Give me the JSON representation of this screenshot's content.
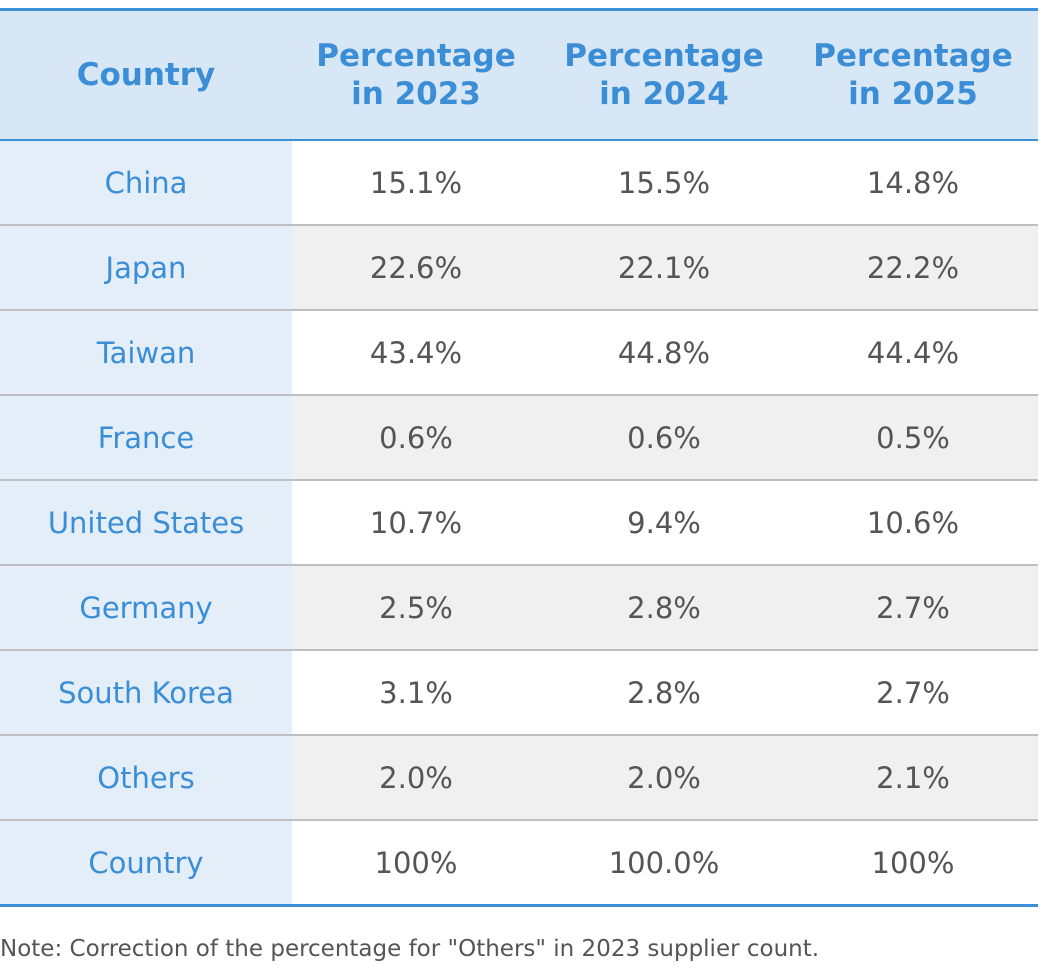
{
  "chart_data": {
    "type": "table",
    "columns": [
      "Country",
      "Percentage in 2023",
      "Percentage in 2024",
      "Percentage in 2025"
    ],
    "header_lines": [
      [
        "Country"
      ],
      [
        "Percentage",
        "in 2023"
      ],
      [
        "Percentage",
        "in 2024"
      ],
      [
        "Percentage",
        "in 2025"
      ]
    ],
    "rows": [
      [
        "China",
        "15.1%",
        "15.5%",
        "14.8%"
      ],
      [
        "Japan",
        "22.6%",
        "22.1%",
        "22.2%"
      ],
      [
        "Taiwan",
        "43.4%",
        "44.8%",
        "44.4%"
      ],
      [
        "France",
        "0.6%",
        "0.6%",
        "0.5%"
      ],
      [
        "United States",
        "10.7%",
        "9.4%",
        "10.6%"
      ],
      [
        "Germany",
        "2.5%",
        "2.8%",
        "2.7%"
      ],
      [
        "South Korea",
        "3.1%",
        "2.8%",
        "2.7%"
      ],
      [
        "Others",
        "2.0%",
        "2.0%",
        "2.1%"
      ],
      [
        "Country",
        "100%",
        "100.0%",
        "100%"
      ]
    ],
    "note": "Note: Correction of the percentage for \"Others\" in 2023 supplier count."
  },
  "colors": {
    "accent": "#3a8fd6",
    "header_bg": "#d8e7f5",
    "country_bg": "#e3eef9",
    "stripe_bg": "#f0f0f0",
    "value_text": "#555555"
  }
}
